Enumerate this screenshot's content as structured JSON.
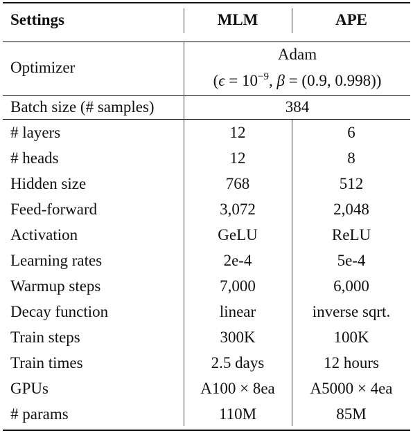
{
  "table": {
    "headers": [
      "Settings",
      "MLM",
      "APE"
    ],
    "optimizer": {
      "label": "Optimizer",
      "name": "Adam",
      "params": {
        "open": "(",
        "eps_sym": "ϵ",
        "eq1": " = 10",
        "exp": "−9",
        "mid": ", ",
        "beta_sym": "β",
        "eq2": " = (0.9, 0.998))"
      }
    },
    "batch": {
      "label": "Batch size (# samples)",
      "value": "384"
    },
    "rows": [
      {
        "label": "# layers",
        "mlm": "12",
        "ape": "6"
      },
      {
        "label": "# heads",
        "mlm": "12",
        "ape": "8"
      },
      {
        "label": "Hidden size",
        "mlm": "768",
        "ape": "512"
      },
      {
        "label": "Feed-forward",
        "mlm": "3,072",
        "ape": "2,048"
      },
      {
        "label": "Activation",
        "mlm": "GeLU",
        "ape": "ReLU"
      },
      {
        "label": "Learning rates",
        "mlm": "2e-4",
        "ape": "5e-4"
      },
      {
        "label": "Warmup steps",
        "mlm": "7,000",
        "ape": "6,000"
      },
      {
        "label": "Decay function",
        "mlm": "linear",
        "ape": "inverse sqrt."
      },
      {
        "label": "Train steps",
        "mlm": "300K",
        "ape": "100K"
      },
      {
        "label": "Train times",
        "mlm": "2.5 days",
        "ape": "12 hours"
      },
      {
        "label": "GPUs",
        "mlm": "A100 × 8ea",
        "ape": "A5000 × 4ea"
      },
      {
        "label": "# params",
        "mlm": "110M",
        "ape": "85M"
      }
    ]
  }
}
